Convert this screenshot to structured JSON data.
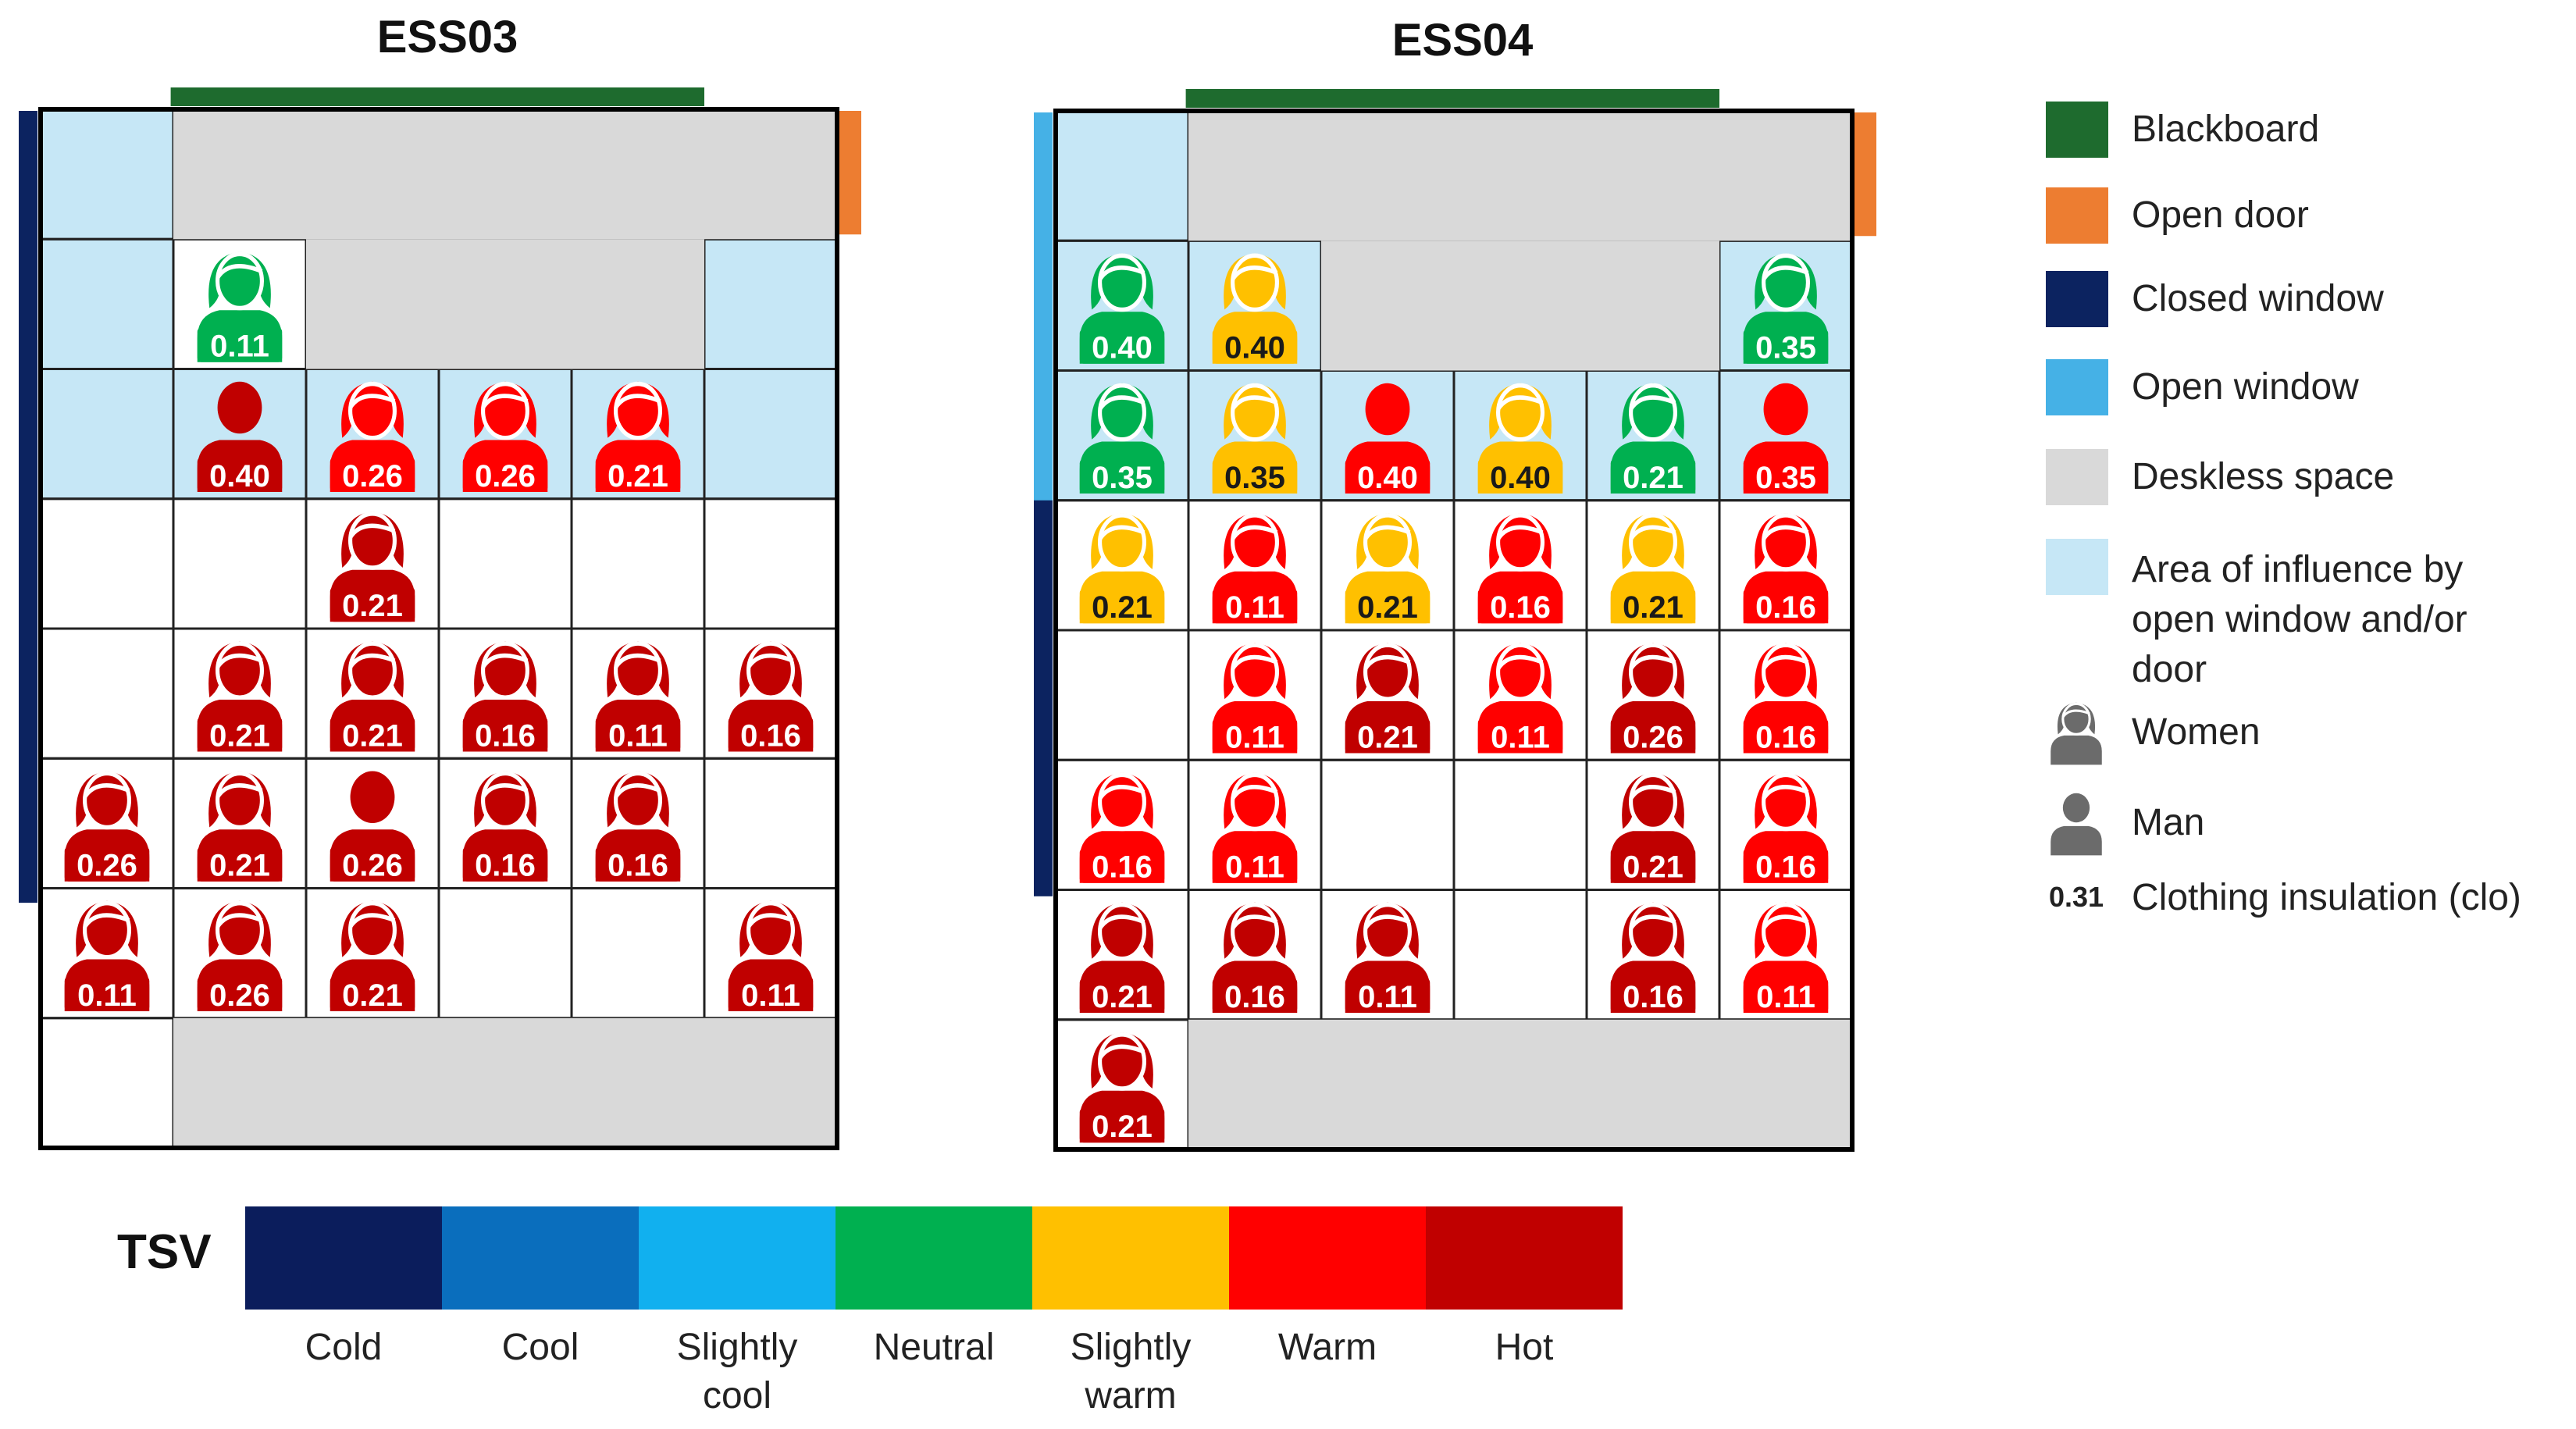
{
  "titles": {
    "left": "ESS03",
    "right": "ESS04"
  },
  "colors": {
    "blackboard": "#1e6b2e",
    "open_door": "#ed7d31",
    "closed_window": "#0c2360",
    "open_window": "#45b1e6",
    "deskless": "#d9d9d9",
    "influence": "#c6e7f6",
    "tsv": {
      "cold": "#0b1d5c",
      "cool": "#0a6ebd",
      "slightly_cool": "#11b0ef",
      "neutral": "#00b050",
      "slightly_warm": "#ffc000",
      "warm": "#ff0000",
      "hot": "#c00000"
    }
  },
  "legend": {
    "blackboard": "Blackboard",
    "open_door": "Open door",
    "closed_window": "Closed window",
    "open_window": "Open window",
    "deskless": "Deskless space",
    "influence": "Area of influence by open window and/or door",
    "influence_lines": [
      "Area of influence by",
      "open window and/or",
      "door"
    ],
    "women": "Women",
    "man": "Man",
    "clo_value": "0.31",
    "clo_text": "Clothing insulation (clo)"
  },
  "tsv": {
    "label": "TSV",
    "scale": [
      {
        "key": "cold",
        "lines": [
          "Cold"
        ]
      },
      {
        "key": "cool",
        "lines": [
          "Cool"
        ]
      },
      {
        "key": "slightly_cool",
        "lines": [
          "Slightly",
          "cool"
        ]
      },
      {
        "key": "neutral",
        "lines": [
          "Neutral"
        ]
      },
      {
        "key": "slightly_warm",
        "lines": [
          "Slightly",
          "warm"
        ]
      },
      {
        "key": "warm",
        "lines": [
          "Warm"
        ]
      },
      {
        "key": "hot",
        "lines": [
          "Hot"
        ]
      }
    ]
  },
  "classrooms": [
    {
      "id": "ESS03",
      "cols": 6,
      "rows": 8,
      "window_state": "closed",
      "influence_cells": [
        [
          0,
          0
        ],
        [
          1,
          0
        ],
        [
          1,
          5
        ],
        [
          2,
          0
        ],
        [
          2,
          1
        ],
        [
          2,
          2
        ],
        [
          2,
          3
        ],
        [
          2,
          4
        ],
        [
          2,
          5
        ]
      ],
      "deskless": [
        {
          "r": 0,
          "c": 1,
          "w": 5,
          "h": 1
        },
        {
          "r": 1,
          "c": 2,
          "w": 3,
          "h": 1
        },
        {
          "r": 7,
          "c": 1,
          "w": 5,
          "h": 1
        }
      ],
      "occupants": [
        {
          "r": 1,
          "c": 1,
          "g": "woman",
          "tsv": "neutral",
          "clo": "0.11"
        },
        {
          "r": 2,
          "c": 1,
          "g": "man",
          "tsv": "hot",
          "clo": "0.40"
        },
        {
          "r": 2,
          "c": 2,
          "g": "woman",
          "tsv": "warm",
          "clo": "0.26"
        },
        {
          "r": 2,
          "c": 3,
          "g": "woman",
          "tsv": "warm",
          "clo": "0.26"
        },
        {
          "r": 2,
          "c": 4,
          "g": "woman",
          "tsv": "warm",
          "clo": "0.21"
        },
        {
          "r": 3,
          "c": 2,
          "g": "woman",
          "tsv": "hot",
          "clo": "0.21"
        },
        {
          "r": 4,
          "c": 1,
          "g": "woman",
          "tsv": "hot",
          "clo": "0.21"
        },
        {
          "r": 4,
          "c": 2,
          "g": "woman",
          "tsv": "hot",
          "clo": "0.21"
        },
        {
          "r": 4,
          "c": 3,
          "g": "woman",
          "tsv": "hot",
          "clo": "0.16"
        },
        {
          "r": 4,
          "c": 4,
          "g": "woman",
          "tsv": "hot",
          "clo": "0.11"
        },
        {
          "r": 4,
          "c": 5,
          "g": "woman",
          "tsv": "hot",
          "clo": "0.16"
        },
        {
          "r": 5,
          "c": 0,
          "g": "woman",
          "tsv": "hot",
          "clo": "0.26"
        },
        {
          "r": 5,
          "c": 1,
          "g": "woman",
          "tsv": "hot",
          "clo": "0.21"
        },
        {
          "r": 5,
          "c": 2,
          "g": "man",
          "tsv": "hot",
          "clo": "0.26"
        },
        {
          "r": 5,
          "c": 3,
          "g": "woman",
          "tsv": "hot",
          "clo": "0.16"
        },
        {
          "r": 5,
          "c": 4,
          "g": "woman",
          "tsv": "hot",
          "clo": "0.16"
        },
        {
          "r": 6,
          "c": 0,
          "g": "woman",
          "tsv": "hot",
          "clo": "0.11"
        },
        {
          "r": 6,
          "c": 1,
          "g": "woman",
          "tsv": "hot",
          "clo": "0.26"
        },
        {
          "r": 6,
          "c": 2,
          "g": "woman",
          "tsv": "hot",
          "clo": "0.21"
        },
        {
          "r": 6,
          "c": 5,
          "g": "woman",
          "tsv": "hot",
          "clo": "0.11"
        }
      ]
    },
    {
      "id": "ESS04",
      "cols": 6,
      "rows": 8,
      "window_state": "open-top/closed-bottom",
      "influence_cells": [
        [
          0,
          0
        ],
        [
          1,
          0
        ],
        [
          1,
          1
        ],
        [
          1,
          5
        ],
        [
          2,
          0
        ],
        [
          2,
          1
        ],
        [
          2,
          2
        ],
        [
          2,
          3
        ],
        [
          2,
          4
        ],
        [
          2,
          5
        ]
      ],
      "deskless": [
        {
          "r": 0,
          "c": 1,
          "w": 5,
          "h": 1
        },
        {
          "r": 1,
          "c": 2,
          "w": 3,
          "h": 1
        },
        {
          "r": 7,
          "c": 1,
          "w": 5,
          "h": 1
        }
      ],
      "occupants": [
        {
          "r": 1,
          "c": 0,
          "g": "woman",
          "tsv": "neutral",
          "clo": "0.40"
        },
        {
          "r": 1,
          "c": 1,
          "g": "woman",
          "tsv": "slightly_warm",
          "clo": "0.40"
        },
        {
          "r": 1,
          "c": 5,
          "g": "woman",
          "tsv": "neutral",
          "clo": "0.35"
        },
        {
          "r": 2,
          "c": 0,
          "g": "woman",
          "tsv": "neutral",
          "clo": "0.35"
        },
        {
          "r": 2,
          "c": 1,
          "g": "woman",
          "tsv": "slightly_warm",
          "clo": "0.35"
        },
        {
          "r": 2,
          "c": 2,
          "g": "man",
          "tsv": "warm",
          "clo": "0.40"
        },
        {
          "r": 2,
          "c": 3,
          "g": "woman",
          "tsv": "slightly_warm",
          "clo": "0.40"
        },
        {
          "r": 2,
          "c": 4,
          "g": "woman",
          "tsv": "neutral",
          "clo": "0.21"
        },
        {
          "r": 2,
          "c": 5,
          "g": "man",
          "tsv": "warm",
          "clo": "0.35"
        },
        {
          "r": 3,
          "c": 0,
          "g": "woman",
          "tsv": "slightly_warm",
          "clo": "0.21"
        },
        {
          "r": 3,
          "c": 1,
          "g": "woman",
          "tsv": "warm",
          "clo": "0.11"
        },
        {
          "r": 3,
          "c": 2,
          "g": "woman",
          "tsv": "slightly_warm",
          "clo": "0.21"
        },
        {
          "r": 3,
          "c": 3,
          "g": "woman",
          "tsv": "warm",
          "clo": "0.16"
        },
        {
          "r": 3,
          "c": 4,
          "g": "woman",
          "tsv": "slightly_warm",
          "clo": "0.21"
        },
        {
          "r": 3,
          "c": 5,
          "g": "woman",
          "tsv": "warm",
          "clo": "0.16"
        },
        {
          "r": 4,
          "c": 1,
          "g": "woman",
          "tsv": "warm",
          "clo": "0.11"
        },
        {
          "r": 4,
          "c": 2,
          "g": "woman",
          "tsv": "hot",
          "clo": "0.21"
        },
        {
          "r": 4,
          "c": 3,
          "g": "woman",
          "tsv": "warm",
          "clo": "0.11"
        },
        {
          "r": 4,
          "c": 4,
          "g": "woman",
          "tsv": "hot",
          "clo": "0.26"
        },
        {
          "r": 4,
          "c": 5,
          "g": "woman",
          "tsv": "warm",
          "clo": "0.16"
        },
        {
          "r": 5,
          "c": 0,
          "g": "woman",
          "tsv": "warm",
          "clo": "0.16"
        },
        {
          "r": 5,
          "c": 1,
          "g": "woman",
          "tsv": "warm",
          "clo": "0.11"
        },
        {
          "r": 5,
          "c": 4,
          "g": "woman",
          "tsv": "hot",
          "clo": "0.21"
        },
        {
          "r": 5,
          "c": 5,
          "g": "woman",
          "tsv": "warm",
          "clo": "0.16"
        },
        {
          "r": 6,
          "c": 0,
          "g": "woman",
          "tsv": "hot",
          "clo": "0.21"
        },
        {
          "r": 6,
          "c": 1,
          "g": "woman",
          "tsv": "hot",
          "clo": "0.16"
        },
        {
          "r": 6,
          "c": 2,
          "g": "woman",
          "tsv": "hot",
          "clo": "0.11"
        },
        {
          "r": 6,
          "c": 4,
          "g": "woman",
          "tsv": "hot",
          "clo": "0.16"
        },
        {
          "r": 6,
          "c": 5,
          "g": "woman",
          "tsv": "warm",
          "clo": "0.11"
        },
        {
          "r": 7,
          "c": 0,
          "g": "woman",
          "tsv": "hot",
          "clo": "0.21"
        }
      ]
    }
  ]
}
